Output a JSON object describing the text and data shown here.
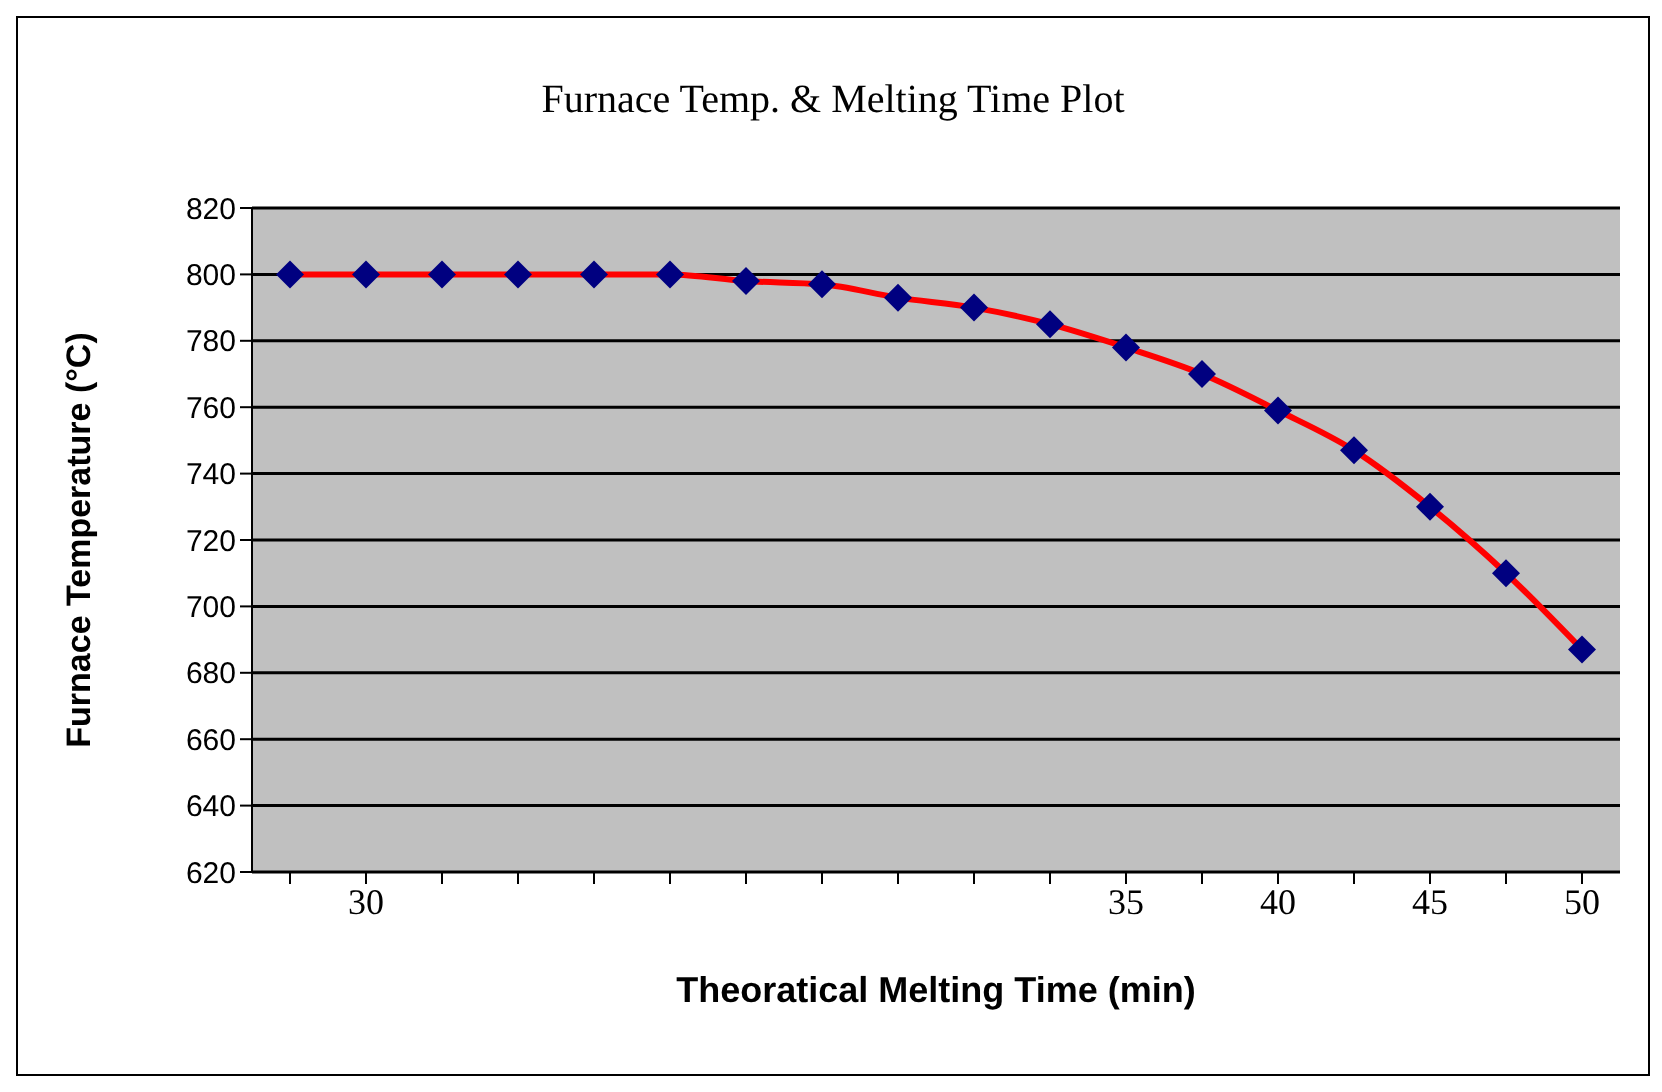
{
  "chart_data": {
    "type": "line",
    "title": "Furnace Temp. & Melting Time Plot",
    "xlabel": "Theoratical Melting Time (min)",
    "ylabel": "Furnace Temperature (°C)",
    "categories": [
      null,
      "30",
      null,
      null,
      null,
      null,
      null,
      null,
      null,
      null,
      null,
      "35",
      null,
      "40",
      null,
      "45",
      null,
      "50"
    ],
    "series": [
      {
        "color": "#ff0000",
        "values": [
          800,
          800,
          800,
          800,
          800,
          800,
          798,
          797,
          793,
          790,
          785,
          778,
          770,
          759,
          747,
          730,
          710,
          687
        ]
      }
    ],
    "ylim": [
      620,
      820
    ],
    "yticks": [
      620,
      640,
      660,
      680,
      700,
      720,
      740,
      760,
      780,
      800,
      820
    ],
    "grid": "y",
    "marker": "diamond",
    "line_style": "solid"
  }
}
